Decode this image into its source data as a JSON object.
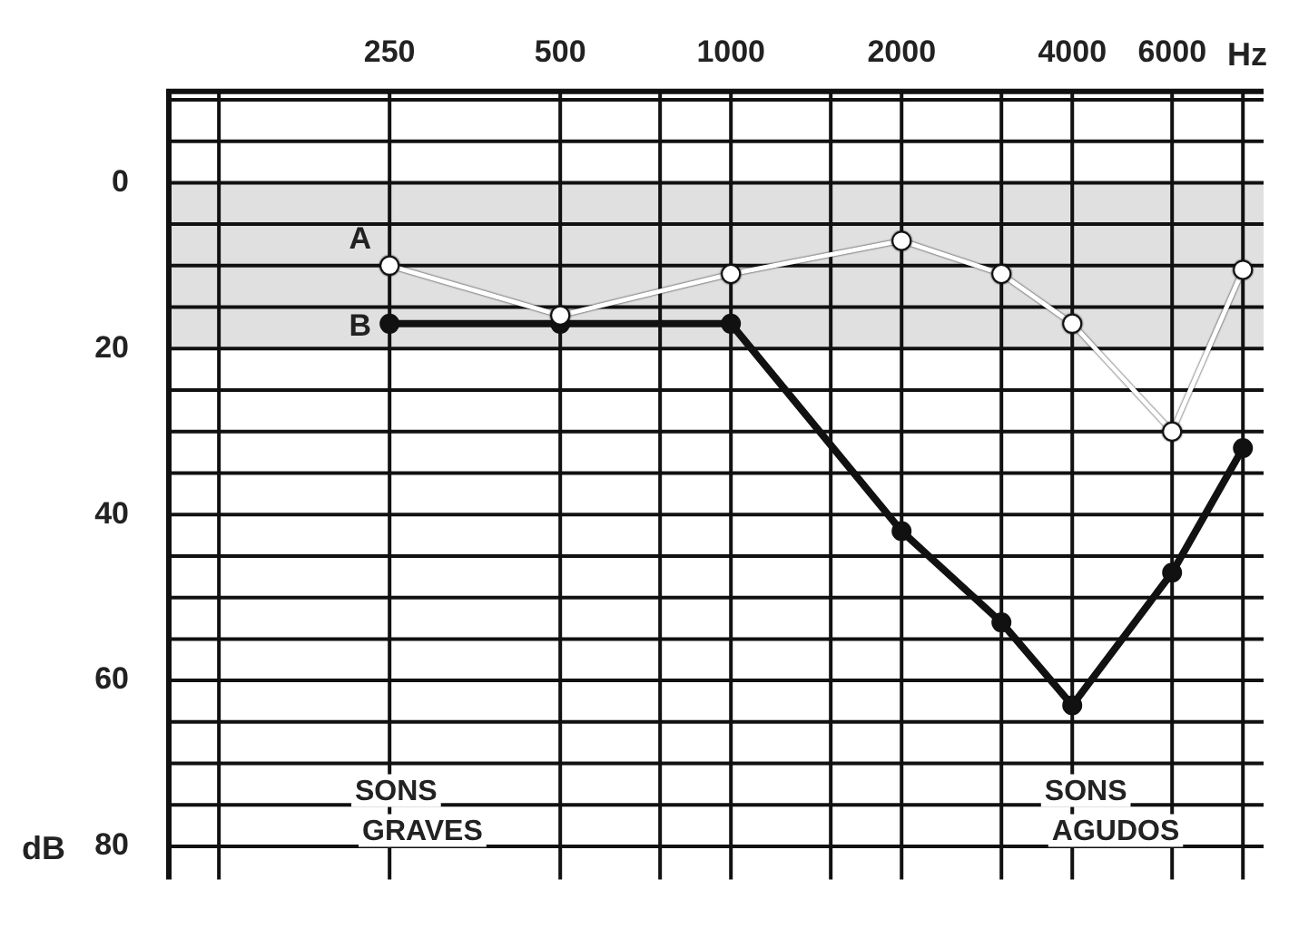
{
  "chart_data": {
    "type": "line",
    "xlabel": "Hz",
    "ylabel": "dB",
    "log": "x",
    "x": [
      250,
      500,
      1000,
      2000,
      3000,
      4000,
      6000,
      8000
    ],
    "series": [
      {
        "name": "A",
        "color": "#ffffff",
        "values": [
          10,
          16,
          11,
          7,
          11,
          17,
          30,
          10.5
        ]
      },
      {
        "name": "B",
        "color": "#111111",
        "values": [
          17,
          17,
          17,
          42,
          53,
          63,
          47,
          32
        ]
      }
    ],
    "xlim": [
      102,
      8700
    ],
    "xticks": [
      {
        "value": 125,
        "label": null
      },
      250,
      500,
      {
        "value": 750,
        "label": null
      },
      1000,
      {
        "value": 1500,
        "label": null
      },
      2000,
      {
        "value": 3000,
        "label": null
      },
      4000,
      6000,
      {
        "value": 8000,
        "label": null
      }
    ],
    "ylim": [
      84,
      -11
    ],
    "yticks": [
      {
        "value": -10,
        "label": null
      },
      {
        "value": -5,
        "label": null
      },
      0,
      {
        "value": 5,
        "label": null
      },
      {
        "value": 10,
        "label": null
      },
      {
        "value": 15,
        "label": null
      },
      20,
      {
        "value": 25,
        "label": null
      },
      {
        "value": 30,
        "label": null
      },
      {
        "value": 35,
        "label": null
      },
      40,
      {
        "value": 45,
        "label": null
      },
      {
        "value": 50,
        "label": null
      },
      {
        "value": 55,
        "label": null
      },
      60,
      {
        "value": 65,
        "label": null
      },
      {
        "value": 70,
        "label": null
      },
      {
        "value": 75,
        "label": null
      },
      80
    ],
    "bands": [
      {
        "axis": "y",
        "from": 0,
        "to": 20,
        "color": "#e0e0e0"
      }
    ],
    "annotations": [
      "SONS GRAVES",
      "SONS AGUDOS"
    ],
    "grid": true,
    "legend": false,
    "marker": "circle",
    "line_style": "solid"
  }
}
